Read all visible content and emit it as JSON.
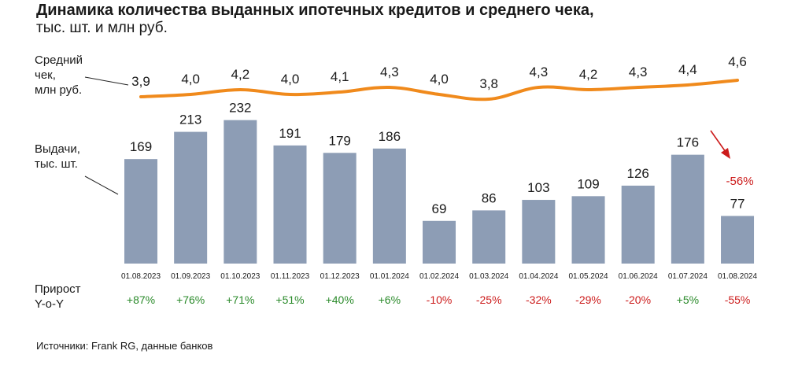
{
  "title": "Динамика количества выданных ипотечных кредитов и среднего чека,",
  "subtitle": "тыс. шт. и млн руб.",
  "labels": {
    "avg_check": [
      "Средний",
      "чек,",
      "млн руб."
    ],
    "issuance": [
      "Выдачи,",
      "тыс. шт."
    ],
    "growth": [
      "Прирост",
      "Y-o-Y"
    ]
  },
  "source": "Источники: Frank RG, данные банков",
  "colors": {
    "bar": "#8d9db5",
    "line": "#f08a1c",
    "positive": "#2a8a2a",
    "negative": "#cc1b1b",
    "arrow": "#cc1b1b"
  },
  "chart_data": {
    "type": "bar",
    "categories": [
      "01.08.2023",
      "01.09.2023",
      "01.10.2023",
      "01.11.2023",
      "01.12.2023",
      "01.01.2024",
      "01.02.2024",
      "01.03.2024",
      "01.04.2024",
      "01.05.2024",
      "01.06.2024",
      "01.07.2024",
      "01.08.2024"
    ],
    "series": [
      {
        "name": "Выдачи, тыс. шт.",
        "type": "bar",
        "values": [
          169,
          213,
          232,
          191,
          179,
          186,
          69,
          86,
          103,
          109,
          126,
          176,
          77
        ]
      },
      {
        "name": "Средний чек, млн руб.",
        "type": "line",
        "values": [
          3.9,
          4.0,
          4.2,
          4.0,
          4.1,
          4.3,
          4.0,
          3.8,
          4.3,
          4.2,
          4.3,
          4.4,
          4.6
        ],
        "value_labels": [
          "3,9",
          "4,0",
          "4,2",
          "4,0",
          "4,1",
          "4,3",
          "4,0",
          "3,8",
          "4,3",
          "4,2",
          "4,3",
          "4,4",
          "4,6"
        ]
      }
    ],
    "yoy": [
      "+87%",
      "+76%",
      "+71%",
      "+51%",
      "+40%",
      "+6%",
      "-10%",
      "-25%",
      "-32%",
      "-29%",
      "-20%",
      "+5%",
      "-55%"
    ],
    "annotation": {
      "text": "-56%",
      "target_category": "01.08.2024",
      "note": "change vs 01.07.2024"
    }
  }
}
